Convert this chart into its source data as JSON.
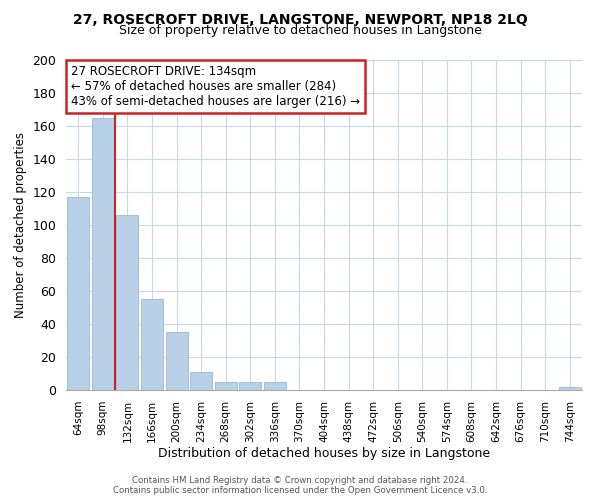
{
  "title": "27, ROSECROFT DRIVE, LANGSTONE, NEWPORT, NP18 2LQ",
  "subtitle": "Size of property relative to detached houses in Langstone",
  "xlabel": "Distribution of detached houses by size in Langstone",
  "ylabel": "Number of detached properties",
  "bin_labels": [
    "64sqm",
    "98sqm",
    "132sqm",
    "166sqm",
    "200sqm",
    "234sqm",
    "268sqm",
    "302sqm",
    "336sqm",
    "370sqm",
    "404sqm",
    "438sqm",
    "472sqm",
    "506sqm",
    "540sqm",
    "574sqm",
    "608sqm",
    "642sqm",
    "676sqm",
    "710sqm",
    "744sqm"
  ],
  "bar_values": [
    117,
    165,
    106,
    55,
    35,
    11,
    5,
    5,
    5,
    0,
    0,
    0,
    0,
    0,
    0,
    0,
    0,
    0,
    0,
    0,
    2
  ],
  "bar_color": "#b8d0e8",
  "bar_edge_color": "#9ab8d4",
  "highlight_line_color": "#cc2222",
  "ylim": [
    0,
    200
  ],
  "yticks": [
    0,
    20,
    40,
    60,
    80,
    100,
    120,
    140,
    160,
    180,
    200
  ],
  "annotation_title": "27 ROSECROFT DRIVE: 134sqm",
  "annotation_line1": "← 57% of detached houses are smaller (284)",
  "annotation_line2": "43% of semi-detached houses are larger (216) →",
  "annotation_box_color": "#ffffff",
  "annotation_box_edge": "#cc2222",
  "footer_line1": "Contains HM Land Registry data © Crown copyright and database right 2024.",
  "footer_line2": "Contains public sector information licensed under the Open Government Licence v3.0.",
  "background_color": "#ffffff",
  "grid_color": "#c8d8e8",
  "title_fontsize": 10,
  "subtitle_fontsize": 9,
  "ylabel_fontsize": 8.5,
  "xlabel_fontsize": 9
}
